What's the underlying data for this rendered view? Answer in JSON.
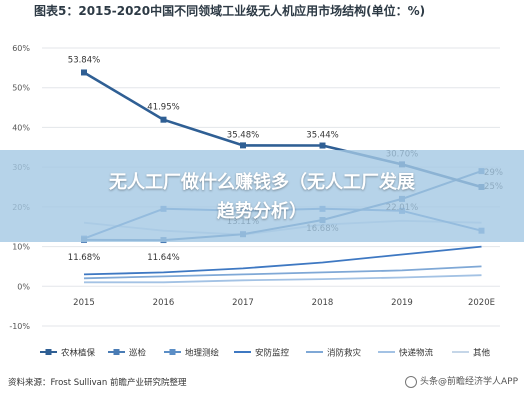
{
  "banner": {
    "line1": "无人工厂做什么赚钱多（无人工厂发展",
    "line2": "趋势分析）"
  },
  "source": "资料来源：Frost Sullivan 前瞻产业研究院整理",
  "watermark": "头条@前瞻经济学人APP",
  "chart_data": {
    "type": "line",
    "title": "图表5：2015-2020中国不同领域工业级无人机应用市场结构(单位：%)",
    "x": [
      "2015",
      "2016",
      "2017",
      "2018",
      "2019",
      "2020E"
    ],
    "ylim": [
      -10,
      60
    ],
    "yticks": [
      "60%",
      "50%",
      "40%",
      "30%",
      "20%",
      "10%",
      "0%",
      "-10%"
    ],
    "grid": true,
    "legend_position": "bottom",
    "series": [
      {
        "name": "农林植保",
        "color": "#2f5f94",
        "values": [
          53.84,
          41.95,
          35.48,
          35.44,
          30.7,
          25
        ],
        "labels": [
          "53.84%",
          "41.95%",
          "35.48%",
          "35.44%",
          "30.70%",
          "25%"
        ],
        "marker": "square"
      },
      {
        "name": "巡检",
        "color": "#4a7cb5",
        "values": [
          11.68,
          11.64,
          13.11,
          16.68,
          22.01,
          29
        ],
        "labels": [
          "11.68%",
          "11.64%",
          "13.11%",
          "16.68%",
          "22.01%",
          "29%"
        ],
        "marker": "square"
      },
      {
        "name": "地理测绘",
        "color": "#5b8ec6",
        "values": [
          12,
          19.5,
          19,
          19.5,
          19,
          14
        ],
        "labels": [],
        "marker": "square"
      },
      {
        "name": "安防监控",
        "color": "#3e78c2",
        "values": [
          3,
          3.5,
          4.5,
          6,
          8,
          10
        ],
        "labels": [],
        "marker": "none"
      },
      {
        "name": "消防救灾",
        "color": "#7fa8d6",
        "values": [
          2,
          2.5,
          3,
          3.5,
          4,
          5
        ],
        "labels": [],
        "marker": "none"
      },
      {
        "name": "快递物流",
        "color": "#a3c2e4",
        "values": [
          1,
          1,
          1.5,
          1.8,
          2.2,
          2.8
        ],
        "labels": [],
        "marker": "none"
      },
      {
        "name": "其他",
        "color": "#c5d6e8",
        "values": [
          16,
          14,
          13,
          15.5,
          16.5,
          16
        ],
        "labels": [],
        "marker": "none"
      }
    ]
  }
}
